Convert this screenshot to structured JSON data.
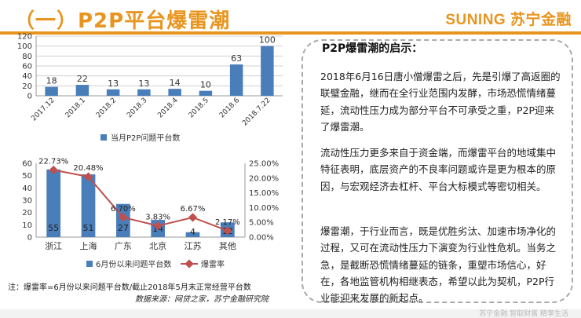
{
  "header": {
    "title": "（一）P2P平台爆雷潮",
    "logo_text": "SUNING 苏宁金融"
  },
  "chart_data": [
    {
      "type": "bar",
      "categories": [
        "2017.12",
        "2018.1",
        "2018.2",
        "2018.3",
        "2018.4",
        "2018.5",
        "2018.6",
        "2018.7.22"
      ],
      "series": [
        {
          "name": "当月P2P问题平台数",
          "values": [
            18,
            22,
            13,
            13,
            14,
            10,
            63,
            100
          ],
          "color": "#4a7ebb"
        }
      ],
      "ylim": [
        0,
        120
      ],
      "yticks": [
        0,
        20,
        40,
        60,
        80,
        100,
        120
      ],
      "grid": true,
      "legend": "bottom",
      "data_labels": true
    },
    {
      "type": "bar",
      "categories": [
        "浙江",
        "上海",
        "广东",
        "北京",
        "江苏",
        "其他"
      ],
      "series": [
        {
          "name": "6月份以来问题平台数",
          "type": "bar",
          "axis": "left",
          "values": [
            55,
            51,
            27,
            14,
            4,
            12
          ],
          "color": "#4a7ebb"
        },
        {
          "name": "爆雷率",
          "type": "line",
          "axis": "right",
          "values": [
            22.73,
            20.48,
            6.7,
            3.83,
            6.67,
            2.17
          ],
          "color": "#c0504d"
        }
      ],
      "bar_labels": [
        "55",
        "51",
        "27",
        "14",
        "4",
        "12"
      ],
      "line_labels": [
        "22.73%",
        "20.48%",
        "6.70%",
        "3.83%",
        "6.67%",
        "2.17%"
      ],
      "ylim": [
        0,
        60
      ],
      "yticks": [
        "0",
        "10",
        "20",
        "30",
        "40",
        "50",
        "60"
      ],
      "y2lim": [
        0,
        25
      ],
      "y2ticks": [
        "0.00%",
        "5.00%",
        "10.00%",
        "15.00%",
        "20.00%",
        "25.00%"
      ],
      "legend": "bottom"
    }
  ],
  "note": "注：爆雷率=6月份以来问题平台数/截止2018年5月末正常经营平台数",
  "source": "数据来源：网贷之家，苏宁金融研究院",
  "sidebox": {
    "title": "P2P爆雷潮的启示：",
    "paragraphs": [
      "2018年6月16日唐小僧爆雷之后，先是引爆了高返圈的联璧金融，继而在全行业范围内发酵，市场恐慌情绪蔓延，流动性压力成为部分平台不可承受之重，P2P迎来了爆雷潮。",
      "流动性压力更多来自于资金端，而爆雷平台的地域集中特征表明，底层资产的不良率问题或许是更为根本的原因，与宏观经济去杠杆、平台大标模式等密切相关。",
      "爆雷潮，于行业而言，既是优胜劣汰、加速市场净化的过程，又可在流动性压力下演变为行业性危机。当务之急，是截断恐慌情绪蔓延的链条，重塑市场信心，好在，各地监管机构相继表态，希望以此为契机，P2P行业能迎来发展的新起点。"
    ]
  },
  "footer": {
    "text": "苏宁金融  智取财富  精享生活"
  }
}
